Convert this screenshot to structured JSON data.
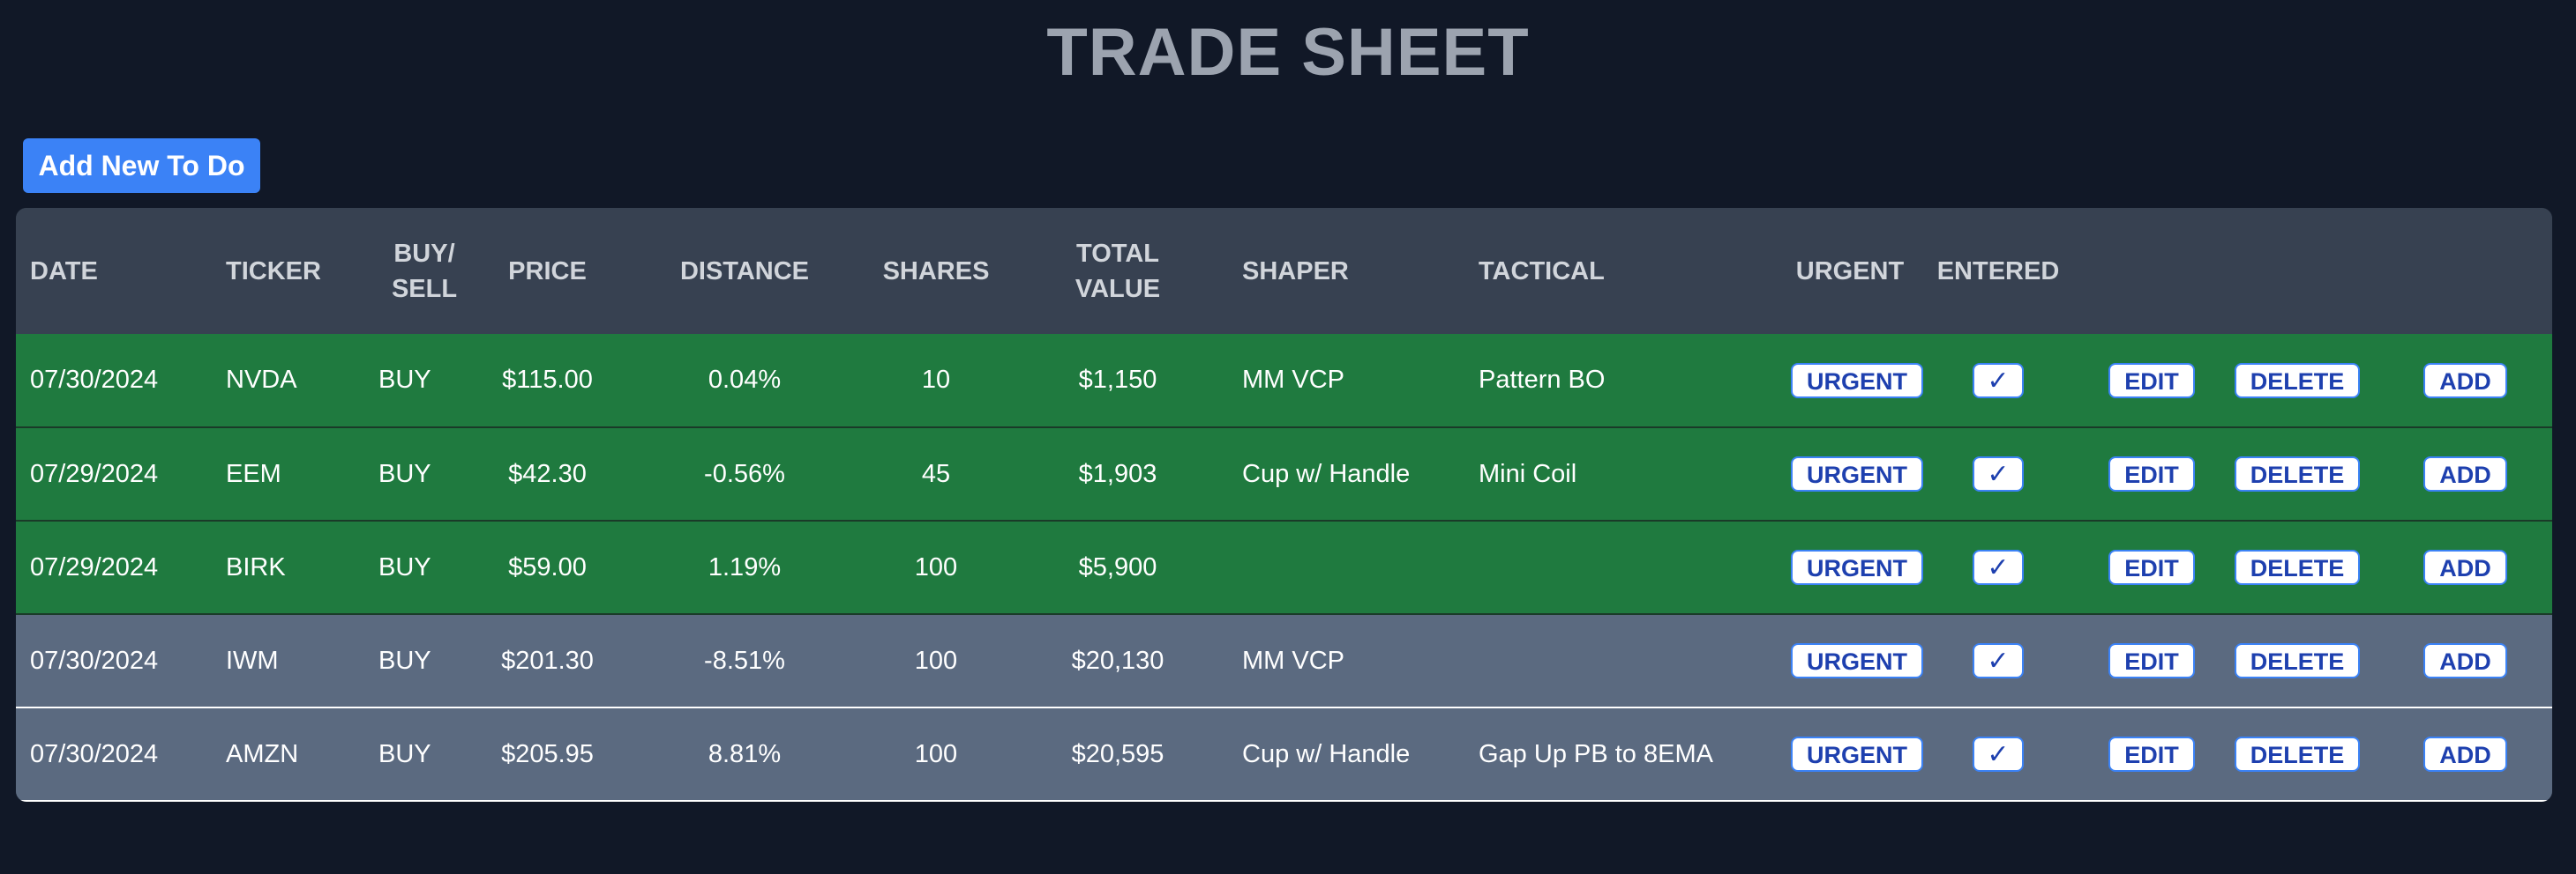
{
  "page": {
    "title": "TRADE SHEET",
    "add_button_label": "Add New To Do"
  },
  "table": {
    "headers": {
      "date": "DATE",
      "ticker": "TICKER",
      "buysell": "BUY/\nSELL",
      "price": "PRICE",
      "distance": "DISTANCE",
      "shares": "SHARES",
      "total_value": "TOTAL\nVALUE",
      "shaper": "SHAPER",
      "tactical": "TACTICAL",
      "urgent": "URGENT",
      "entered": "ENTERED"
    },
    "actions": {
      "urgent": "URGENT",
      "entered": "✓",
      "edit": "EDIT",
      "delete": "DELETE",
      "add": "ADD"
    },
    "rows": [
      {
        "date": "07/30/2024",
        "ticker": "NVDA",
        "side": "BUY",
        "price": "$115.00",
        "distance": "0.04%",
        "shares": "10",
        "total_value": "$1,150",
        "shaper": "MM VCP",
        "tactical": "Pattern BO",
        "status": "green"
      },
      {
        "date": "07/29/2024",
        "ticker": "EEM",
        "side": "BUY",
        "price": "$42.30",
        "distance": "-0.56%",
        "shares": "45",
        "total_value": "$1,903",
        "shaper": "Cup w/ Handle",
        "tactical": "Mini Coil",
        "status": "green"
      },
      {
        "date": "07/29/2024",
        "ticker": "BIRK",
        "side": "BUY",
        "price": "$59.00",
        "distance": "1.19%",
        "shares": "100",
        "total_value": "$5,900",
        "shaper": "",
        "tactical": "",
        "status": "green"
      },
      {
        "date": "07/30/2024",
        "ticker": "IWM",
        "side": "BUY",
        "price": "$201.30",
        "distance": "-8.51%",
        "shares": "100",
        "total_value": "$20,130",
        "shaper": "MM VCP",
        "tactical": "",
        "status": "gray"
      },
      {
        "date": "07/30/2024",
        "ticker": "AMZN",
        "side": "BUY",
        "price": "$205.95",
        "distance": "8.81%",
        "shares": "100",
        "total_value": "$20,595",
        "shaper": "Cup w/ Handle",
        "tactical": "Gap Up PB to 8EMA",
        "status": "gray"
      }
    ]
  },
  "colors": {
    "background": "#111827",
    "header_row": "#374151",
    "entered_row": "#1f7a3f",
    "pending_row": "#5b6a80",
    "primary_button": "#3b82f6"
  }
}
